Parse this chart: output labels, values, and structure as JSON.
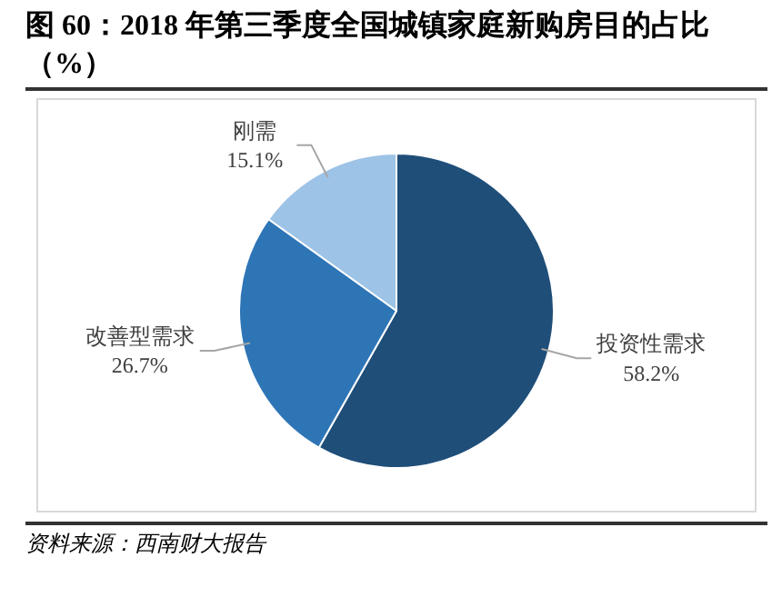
{
  "chart_data": {
    "type": "pie",
    "title": "图 60：2018 年第三季度全国城镇家庭新购房目的占比（%）",
    "categories": [
      "投资性需求",
      "改善型需求",
      "刚需"
    ],
    "values": [
      58.2,
      26.7,
      15.1
    ],
    "colors": [
      "#1f4e79",
      "#2e75b6",
      "#9dc3e6"
    ],
    "value_labels": [
      "58.2%",
      "26.7%",
      "15.1%"
    ],
    "legend": false,
    "annotations": [
      "资料来源：西南财大报告"
    ]
  }
}
